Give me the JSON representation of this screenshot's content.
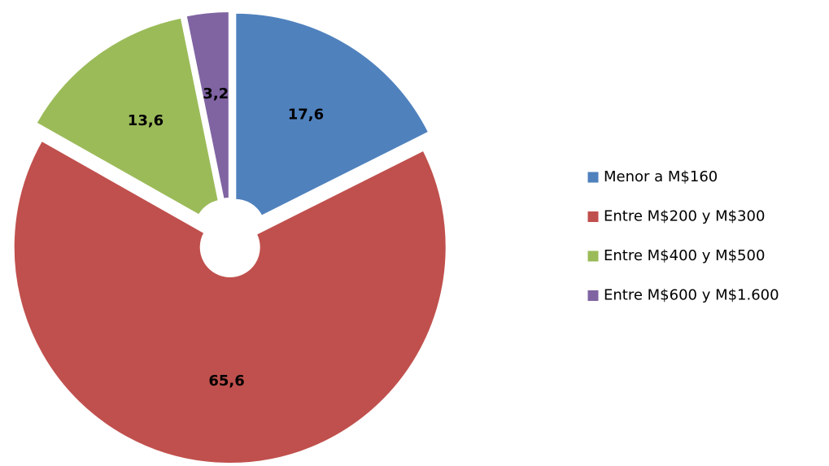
{
  "chart_data": {
    "type": "doughnut",
    "categories": [
      "Menor a M$160",
      "Entre M$200 y M$300",
      "Entre M$400 y M$500",
      "Entre M$600 y M$1.600"
    ],
    "values": [
      17.6,
      65.6,
      13.6,
      3.2
    ],
    "value_labels": [
      "17,6",
      "65,6",
      "13,6",
      "3,2"
    ],
    "colors": [
      "#4f81bd",
      "#c0504d",
      "#9bbb59",
      "#8064a2"
    ],
    "legend": "right"
  }
}
